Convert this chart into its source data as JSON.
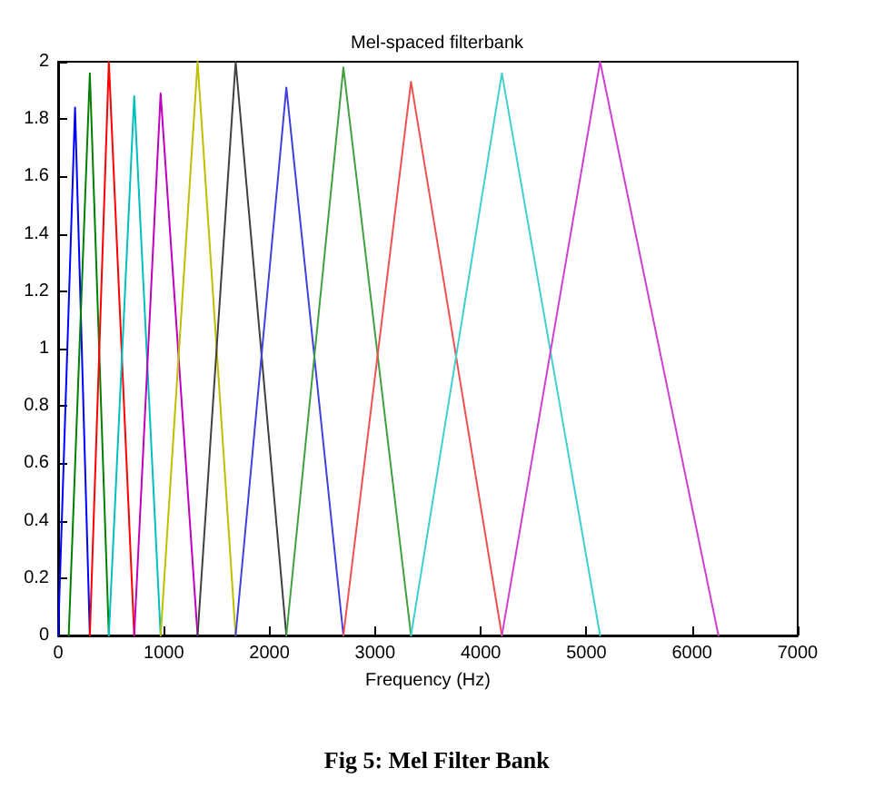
{
  "chart_data": {
    "type": "line",
    "title": "Mel-spaced filterbank",
    "xlabel": "Frequency (Hz)",
    "annotations": [
      "Fig 5: Mel Filter Bank"
    ],
    "xlim": [
      0,
      7000
    ],
    "ylim": [
      0,
      2
    ],
    "xticks": [
      0,
      1000,
      2000,
      3000,
      4000,
      5000,
      6000,
      7000
    ],
    "yticks": [
      0,
      0.2,
      0.4,
      0.6,
      0.8,
      1,
      1.2,
      1.4,
      1.6,
      1.8,
      2
    ],
    "grid": false,
    "marker": "none",
    "line_style": "solid",
    "series": [
      {
        "color": "#0000ff",
        "x": [
          0,
          160,
          300
        ],
        "values": [
          0,
          1.84,
          0
        ]
      },
      {
        "color": "#008000",
        "x": [
          100,
          300,
          480
        ],
        "values": [
          0,
          1.96,
          0
        ]
      },
      {
        "color": "#ff0000",
        "x": [
          300,
          480,
          720
        ],
        "values": [
          0,
          2,
          0
        ]
      },
      {
        "color": "#00bfbf",
        "x": [
          480,
          720,
          970
        ],
        "values": [
          0,
          1.88,
          0
        ]
      },
      {
        "color": "#bf00bf",
        "x": [
          720,
          970,
          1320
        ],
        "values": [
          0,
          1.89,
          0
        ]
      },
      {
        "color": "#bfbf00",
        "x": [
          970,
          1320,
          1680
        ],
        "values": [
          0,
          2,
          0
        ]
      },
      {
        "color": "#404040",
        "x": [
          1320,
          1680,
          2160
        ],
        "values": [
          0,
          2,
          0
        ]
      },
      {
        "color": "#4040e0",
        "x": [
          1680,
          2160,
          2700
        ],
        "values": [
          0,
          1.91,
          0
        ]
      },
      {
        "color": "#40a040",
        "x": [
          2160,
          2700,
          3340
        ],
        "values": [
          0,
          1.98,
          0
        ]
      },
      {
        "color": "#f05050",
        "x": [
          2700,
          3340,
          4200
        ],
        "values": [
          0,
          1.93,
          0
        ]
      },
      {
        "color": "#40d0d0",
        "x": [
          3340,
          4200,
          5130
        ],
        "values": [
          0,
          1.96,
          0
        ]
      },
      {
        "color": "#d040d0",
        "x": [
          4200,
          5130,
          6250
        ],
        "values": [
          0,
          2,
          0
        ]
      }
    ]
  }
}
